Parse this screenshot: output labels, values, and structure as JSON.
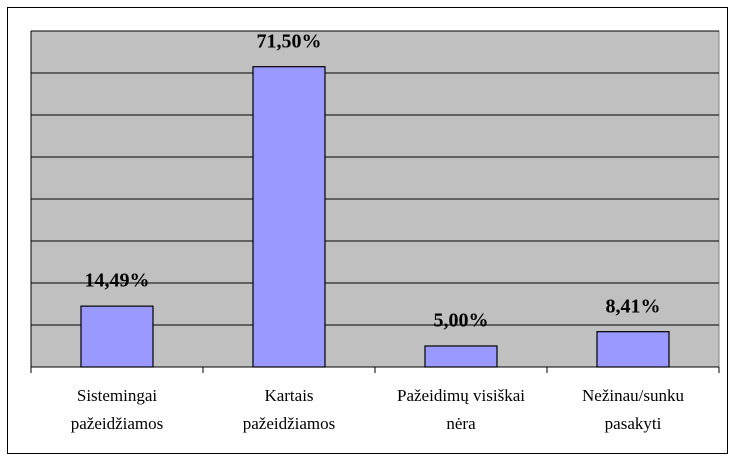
{
  "chart_data": {
    "type": "bar",
    "categories": [
      [
        "Sistemingai",
        "pažeidžiamos"
      ],
      [
        "Kartais",
        "pažeidžiamos"
      ],
      [
        "Pažeidimų visiškai",
        "nėra"
      ],
      [
        "Nežinau/sunku",
        "pasakyti"
      ]
    ],
    "values": [
      14.49,
      71.5,
      5.0,
      8.41
    ],
    "value_labels": [
      "14,49%",
      "71,50%",
      "5,00%",
      "8,41%"
    ],
    "color": "#9999ff",
    "ylim": [
      0,
      80
    ],
    "yticks": [
      0,
      10,
      20,
      30,
      40,
      50,
      60,
      70,
      80
    ],
    "grid": true
  }
}
